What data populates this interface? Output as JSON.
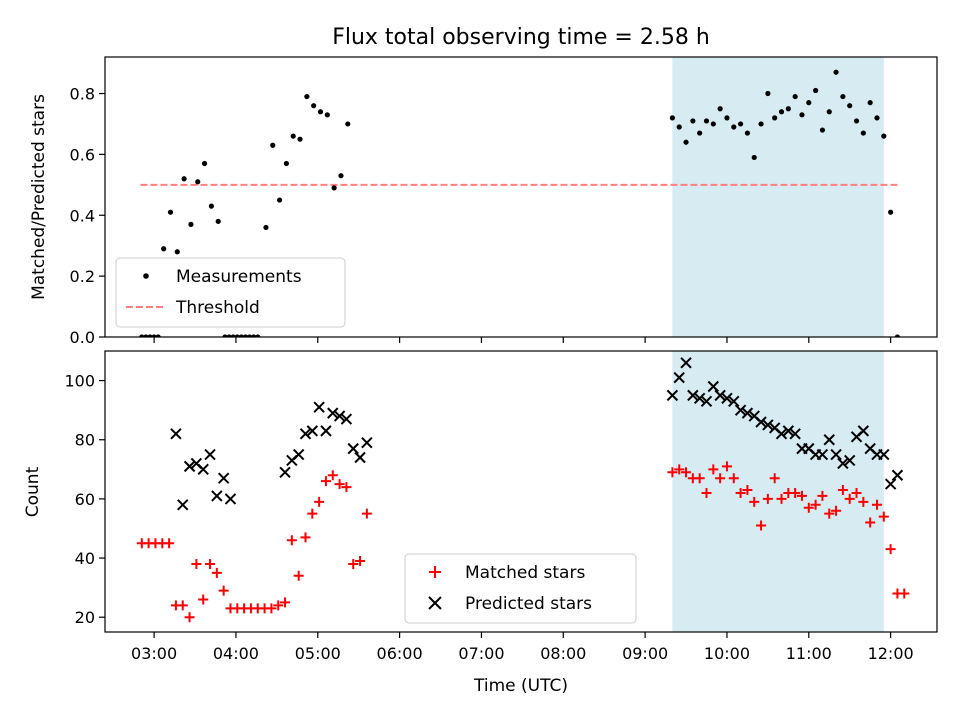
{
  "chart_data": [
    {
      "type": "scatter",
      "title": "Flux total observing time = 2.58 h",
      "xlabel": "",
      "ylabel": "Matched/Predicted stars",
      "x_range": [
        "02:24",
        "12:34"
      ],
      "ylim": [
        0,
        0.92
      ],
      "yticks": [
        0.0,
        0.2,
        0.4,
        0.6,
        0.8
      ],
      "ytick_labels": [
        "0.0",
        "0.2",
        "0.4",
        "0.6",
        "0.8"
      ],
      "xtick_times": [
        "03:00",
        "04:00",
        "05:00",
        "06:00",
        "07:00",
        "08:00",
        "09:00",
        "10:00",
        "11:00",
        "12:00"
      ],
      "shaded_interval": [
        "09:20",
        "11:55"
      ],
      "shade_color": "#add8e6",
      "threshold": {
        "name": "Threshold",
        "value": 0.5,
        "x_range": [
          "02:50",
          "12:05"
        ],
        "color": "#ff7f7f",
        "style": "dashed"
      },
      "series": [
        {
          "name": "Measurements",
          "color": "#000000",
          "marker": "dot",
          "points": [
            [
              "02:51",
              0.0
            ],
            [
              "02:54",
              0.0
            ],
            [
              "02:57",
              0.0
            ],
            [
              "03:00",
              0.0
            ],
            [
              "03:03",
              0.0
            ],
            [
              "03:07",
              0.29
            ],
            [
              "03:12",
              0.41
            ],
            [
              "03:17",
              0.28
            ],
            [
              "03:22",
              0.52
            ],
            [
              "03:27",
              0.37
            ],
            [
              "03:32",
              0.51
            ],
            [
              "03:37",
              0.57
            ],
            [
              "03:42",
              0.43
            ],
            [
              "03:47",
              0.38
            ],
            [
              "03:52",
              0.0
            ],
            [
              "03:55",
              0.0
            ],
            [
              "03:58",
              0.0
            ],
            [
              "04:01",
              0.0
            ],
            [
              "04:04",
              0.0
            ],
            [
              "04:07",
              0.0
            ],
            [
              "04:10",
              0.0
            ],
            [
              "04:13",
              0.0
            ],
            [
              "04:16",
              0.0
            ],
            [
              "04:22",
              0.36
            ],
            [
              "04:27",
              0.63
            ],
            [
              "04:32",
              0.45
            ],
            [
              "04:37",
              0.57
            ],
            [
              "04:42",
              0.66
            ],
            [
              "04:47",
              0.65
            ],
            [
              "04:52",
              0.79
            ],
            [
              "04:57",
              0.76
            ],
            [
              "05:02",
              0.74
            ],
            [
              "05:07",
              0.73
            ],
            [
              "05:12",
              0.49
            ],
            [
              "05:17",
              0.53
            ],
            [
              "05:22",
              0.7
            ],
            [
              "09:20",
              0.72
            ],
            [
              "09:25",
              0.69
            ],
            [
              "09:30",
              0.64
            ],
            [
              "09:35",
              0.71
            ],
            [
              "09:40",
              0.67
            ],
            [
              "09:45",
              0.71
            ],
            [
              "09:50",
              0.7
            ],
            [
              "09:55",
              0.75
            ],
            [
              "10:00",
              0.72
            ],
            [
              "10:05",
              0.69
            ],
            [
              "10:10",
              0.7
            ],
            [
              "10:15",
              0.67
            ],
            [
              "10:20",
              0.59
            ],
            [
              "10:25",
              0.7
            ],
            [
              "10:30",
              0.8
            ],
            [
              "10:35",
              0.72
            ],
            [
              "10:40",
              0.74
            ],
            [
              "10:45",
              0.75
            ],
            [
              "10:50",
              0.79
            ],
            [
              "10:55",
              0.73
            ],
            [
              "11:00",
              0.77
            ],
            [
              "11:05",
              0.81
            ],
            [
              "11:10",
              0.68
            ],
            [
              "11:15",
              0.74
            ],
            [
              "11:20",
              0.87
            ],
            [
              "11:25",
              0.79
            ],
            [
              "11:30",
              0.76
            ],
            [
              "11:35",
              0.71
            ],
            [
              "11:40",
              0.67
            ],
            [
              "11:45",
              0.77
            ],
            [
              "11:50",
              0.72
            ],
            [
              "11:55",
              0.66
            ],
            [
              "12:00",
              0.41
            ],
            [
              "12:05",
              0.0
            ]
          ]
        }
      ],
      "legend": {
        "position": "lower-left",
        "entries": [
          "Measurements",
          "Threshold"
        ]
      }
    },
    {
      "type": "scatter",
      "title": "",
      "xlabel": "Time (UTC)",
      "ylabel": "Count",
      "x_range": [
        "02:24",
        "12:34"
      ],
      "ylim": [
        15,
        110
      ],
      "yticks": [
        20,
        40,
        60,
        80,
        100
      ],
      "ytick_labels": [
        "20",
        "40",
        "60",
        "80",
        "100"
      ],
      "xtick_times": [
        "03:00",
        "04:00",
        "05:00",
        "06:00",
        "07:00",
        "08:00",
        "09:00",
        "10:00",
        "11:00",
        "12:00"
      ],
      "xtick_labels": [
        "03:00",
        "04:00",
        "05:00",
        "06:00",
        "07:00",
        "08:00",
        "09:00",
        "10:00",
        "11:00",
        "12:00"
      ],
      "shaded_interval": [
        "09:20",
        "11:55"
      ],
      "shade_color": "#add8e6",
      "series": [
        {
          "name": "Matched stars",
          "color": "#ff0000",
          "marker": "plus",
          "points": [
            [
              "02:51",
              45
            ],
            [
              "02:56",
              45
            ],
            [
              "03:01",
              45
            ],
            [
              "03:06",
              45
            ],
            [
              "03:11",
              45
            ],
            [
              "03:16",
              24
            ],
            [
              "03:21",
              24
            ],
            [
              "03:26",
              20
            ],
            [
              "03:31",
              38
            ],
            [
              "03:36",
              26
            ],
            [
              "03:41",
              38
            ],
            [
              "03:46",
              35
            ],
            [
              "03:51",
              29
            ],
            [
              "03:56",
              23
            ],
            [
              "04:01",
              23
            ],
            [
              "04:06",
              23
            ],
            [
              "04:11",
              23
            ],
            [
              "04:16",
              23
            ],
            [
              "04:21",
              23
            ],
            [
              "04:26",
              23
            ],
            [
              "04:31",
              24
            ],
            [
              "04:36",
              25
            ],
            [
              "04:41",
              46
            ],
            [
              "04:46",
              34
            ],
            [
              "04:51",
              47
            ],
            [
              "04:56",
              55
            ],
            [
              "05:01",
              59
            ],
            [
              "05:06",
              66
            ],
            [
              "05:11",
              68
            ],
            [
              "05:16",
              65
            ],
            [
              "05:21",
              64
            ],
            [
              "05:26",
              38
            ],
            [
              "05:31",
              39
            ],
            [
              "05:36",
              55
            ],
            [
              "09:20",
              69
            ],
            [
              "09:25",
              70
            ],
            [
              "09:30",
              69
            ],
            [
              "09:35",
              67
            ],
            [
              "09:40",
              67
            ],
            [
              "09:45",
              62
            ],
            [
              "09:50",
              70
            ],
            [
              "09:55",
              67
            ],
            [
              "10:00",
              71
            ],
            [
              "10:05",
              67
            ],
            [
              "10:10",
              62
            ],
            [
              "10:15",
              63
            ],
            [
              "10:20",
              59
            ],
            [
              "10:25",
              51
            ],
            [
              "10:30",
              60
            ],
            [
              "10:35",
              67
            ],
            [
              "10:40",
              60
            ],
            [
              "10:45",
              62
            ],
            [
              "10:50",
              62
            ],
            [
              "10:55",
              61
            ],
            [
              "11:00",
              57
            ],
            [
              "11:05",
              58
            ],
            [
              "11:10",
              61
            ],
            [
              "11:15",
              55
            ],
            [
              "11:20",
              56
            ],
            [
              "11:25",
              63
            ],
            [
              "11:30",
              60
            ],
            [
              "11:35",
              62
            ],
            [
              "11:40",
              59
            ],
            [
              "11:45",
              52
            ],
            [
              "11:50",
              58
            ],
            [
              "11:55",
              54
            ],
            [
              "12:00",
              43
            ],
            [
              "12:05",
              28
            ],
            [
              "12:10",
              28
            ]
          ]
        },
        {
          "name": "Predicted stars",
          "color": "#000000",
          "marker": "x",
          "points": [
            [
              "03:16",
              82
            ],
            [
              "03:21",
              58
            ],
            [
              "03:26",
              71
            ],
            [
              "03:31",
              72
            ],
            [
              "03:36",
              70
            ],
            [
              "03:41",
              75
            ],
            [
              "03:46",
              61
            ],
            [
              "03:51",
              67
            ],
            [
              "03:56",
              60
            ],
            [
              "04:36",
              69
            ],
            [
              "04:41",
              73
            ],
            [
              "04:46",
              75
            ],
            [
              "04:51",
              82
            ],
            [
              "04:56",
              83
            ],
            [
              "05:01",
              91
            ],
            [
              "05:06",
              83
            ],
            [
              "05:11",
              89
            ],
            [
              "05:16",
              88
            ],
            [
              "05:21",
              87
            ],
            [
              "05:26",
              77
            ],
            [
              "05:31",
              74
            ],
            [
              "05:36",
              79
            ],
            [
              "09:20",
              95
            ],
            [
              "09:25",
              101
            ],
            [
              "09:30",
              106
            ],
            [
              "09:35",
              95
            ],
            [
              "09:40",
              94
            ],
            [
              "09:45",
              93
            ],
            [
              "09:50",
              98
            ],
            [
              "09:55",
              95
            ],
            [
              "10:00",
              94
            ],
            [
              "10:05",
              93
            ],
            [
              "10:10",
              90
            ],
            [
              "10:15",
              89
            ],
            [
              "10:20",
              88
            ],
            [
              "10:25",
              86
            ],
            [
              "10:30",
              85
            ],
            [
              "10:35",
              84
            ],
            [
              "10:40",
              82
            ],
            [
              "10:45",
              83
            ],
            [
              "10:50",
              82
            ],
            [
              "10:55",
              77
            ],
            [
              "11:00",
              77
            ],
            [
              "11:05",
              75
            ],
            [
              "11:10",
              75
            ],
            [
              "11:15",
              80
            ],
            [
              "11:20",
              75
            ],
            [
              "11:25",
              72
            ],
            [
              "11:30",
              73
            ],
            [
              "11:35",
              81
            ],
            [
              "11:40",
              83
            ],
            [
              "11:45",
              77
            ],
            [
              "11:50",
              75
            ],
            [
              "11:55",
              75
            ],
            [
              "12:00",
              65
            ],
            [
              "12:05",
              68
            ]
          ]
        }
      ],
      "legend": {
        "position": "lower-center",
        "entries": [
          "Matched stars",
          "Predicted stars"
        ]
      }
    }
  ]
}
